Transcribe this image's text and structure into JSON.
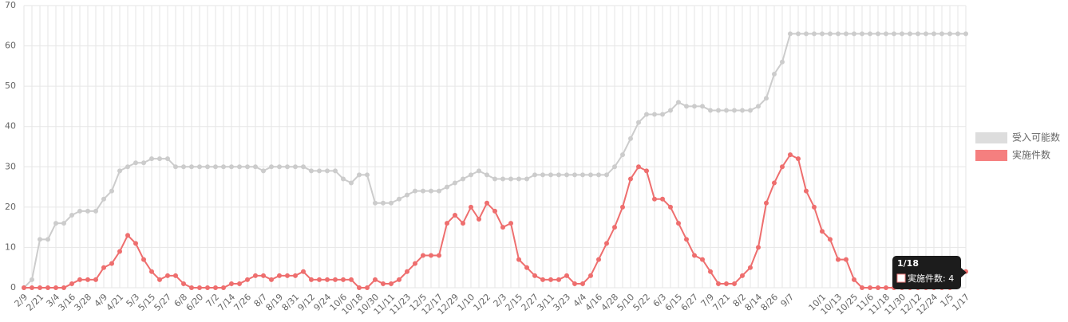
{
  "chart_data": {
    "type": "line",
    "categories": [
      "2/9",
      null,
      "2/21",
      null,
      "3/4",
      null,
      "3/16",
      null,
      "3/28",
      null,
      "4/9",
      null,
      "4/21",
      null,
      "5/3",
      null,
      "5/15",
      null,
      "5/27",
      null,
      "6/8",
      null,
      "6/20",
      null,
      "7/2",
      null,
      "7/14",
      null,
      "7/26",
      null,
      "8/7",
      null,
      "8/19",
      null,
      "8/31",
      null,
      "9/12",
      null,
      "9/24",
      null,
      "10/6",
      null,
      "10/18",
      null,
      "10/30",
      null,
      "11/11",
      null,
      "11/23",
      null,
      "12/5",
      null,
      "12/17",
      null,
      "12/29",
      null,
      "1/10",
      null,
      "1/22",
      null,
      "2/3",
      null,
      "2/15",
      null,
      "2/27",
      null,
      "3/11",
      null,
      "3/23",
      null,
      "4/4",
      null,
      "4/16",
      null,
      "4/28",
      null,
      "5/10",
      null,
      "5/22",
      null,
      "6/3",
      null,
      "6/15",
      null,
      "6/27",
      null,
      "7/9",
      null,
      "7/21",
      null,
      "8/2",
      null,
      "8/14",
      null,
      "8/26",
      null,
      "9/7",
      null,
      null,
      null,
      "10/1",
      null,
      "10/13",
      null,
      "10/25",
      null,
      "11/6",
      null,
      "11/18",
      null,
      "11/30",
      null,
      "12/12",
      null,
      "12/24",
      null,
      "1/5",
      null,
      "1/17"
    ],
    "series": [
      {
        "name": "受入可能数",
        "color": "#cccccc",
        "legend_color": "#dddddd",
        "values": [
          0,
          2,
          12,
          12,
          16,
          16,
          18,
          19,
          19,
          19,
          22,
          24,
          29,
          30,
          31,
          31,
          32,
          32,
          32,
          30,
          30,
          30,
          30,
          30,
          30,
          30,
          30,
          30,
          30,
          30,
          29,
          30,
          30,
          30,
          30,
          30,
          29,
          29,
          29,
          29,
          27,
          26,
          28,
          28,
          21,
          21,
          21,
          22,
          23,
          24,
          24,
          24,
          24,
          25,
          26,
          27,
          28,
          29,
          28,
          27,
          27,
          27,
          27,
          27,
          28,
          28,
          28,
          28,
          28,
          28,
          28,
          28,
          28,
          28,
          30,
          33,
          37,
          41,
          43,
          43,
          43,
          44,
          46,
          45,
          45,
          45,
          44,
          44,
          44,
          44,
          44,
          44,
          45,
          47,
          53,
          56,
          63,
          63,
          63,
          63,
          63,
          63,
          63,
          63,
          63,
          63,
          63,
          63,
          63,
          63,
          63,
          63,
          63,
          63,
          63,
          63,
          63,
          63,
          63
        ]
      },
      {
        "name": "実施件数",
        "color": "#ee6e6e",
        "legend_color": "#f57f7f",
        "values": [
          0,
          0,
          0,
          0,
          0,
          0,
          1,
          2,
          2,
          2,
          5,
          6,
          9,
          13,
          11,
          7,
          4,
          2,
          3,
          3,
          1,
          0,
          0,
          0,
          0,
          0,
          1,
          1,
          2,
          3,
          3,
          2,
          3,
          3,
          3,
          4,
          2,
          2,
          2,
          2,
          2,
          2,
          0,
          0,
          2,
          1,
          1,
          2,
          4,
          6,
          8,
          8,
          8,
          16,
          18,
          16,
          20,
          17,
          21,
          19,
          15,
          16,
          7,
          5,
          3,
          2,
          2,
          2,
          3,
          1,
          1,
          3,
          7,
          11,
          15,
          20,
          27,
          30,
          29,
          22,
          22,
          20,
          16,
          12,
          8,
          7,
          4,
          1,
          1,
          1,
          3,
          5,
          10,
          21,
          26,
          30,
          33,
          32,
          24,
          20,
          14,
          12,
          7,
          7,
          2,
          0,
          0,
          0,
          0,
          0,
          0,
          0,
          0,
          0,
          0,
          0,
          0,
          2,
          4
        ]
      }
    ],
    "ylim": [
      0,
      70
    ],
    "yticks": [
      0,
      10,
      20,
      30,
      40,
      50,
      60,
      70
    ],
    "grid": true,
    "legend": "right",
    "tooltip": {
      "title": "1/18",
      "text": "実施件数: 4"
    }
  }
}
